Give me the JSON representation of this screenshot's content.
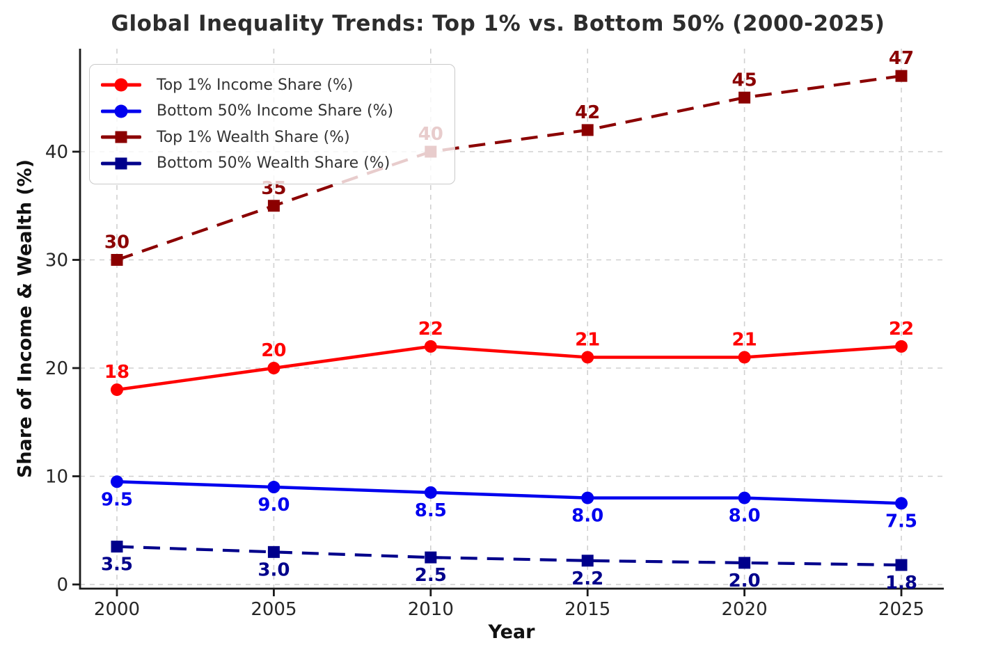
{
  "chart_data": {
    "type": "line",
    "title": "Global Inequality Trends: Top 1% vs. Bottom 50% (2000-2025)",
    "xlabel": "Year",
    "ylabel": "Share of Income & Wealth (%)",
    "categories": [
      2000,
      2005,
      2010,
      2015,
      2020,
      2025
    ],
    "xtick_labels": [
      "2000",
      "2005",
      "2010",
      "2015",
      "2020",
      "2025"
    ],
    "yticks": [
      0,
      10,
      20,
      30,
      40
    ],
    "ytick_labels": [
      "0",
      "10",
      "20",
      "30",
      "40"
    ],
    "ylim": [
      0,
      49.5
    ],
    "grid": true,
    "grid_style": "dashed",
    "legend_position": "upper-left",
    "series": [
      {
        "name": "Top 1% Income Share (%)",
        "values": [
          18,
          20,
          22,
          21,
          21,
          22
        ],
        "point_labels": [
          "18",
          "20",
          "22",
          "21",
          "21",
          "22"
        ],
        "color": "#ff0000",
        "line_style": "solid",
        "marker": "circle",
        "label_side": "above"
      },
      {
        "name": "Bottom 50% Income Share (%)",
        "values": [
          9.5,
          9.0,
          8.5,
          8.0,
          8.0,
          7.5
        ],
        "point_labels": [
          "9.5",
          "9.0",
          "8.5",
          "8.0",
          "8.0",
          "7.5"
        ],
        "color": "#0000ee",
        "line_style": "solid",
        "marker": "circle",
        "label_side": "below"
      },
      {
        "name": "Top 1% Wealth Share (%)",
        "values": [
          30,
          35,
          40,
          42,
          45,
          47
        ],
        "point_labels": [
          "30",
          "35",
          "40",
          "42",
          "45",
          "47"
        ],
        "color": "#8b0000",
        "line_style": "dashed",
        "marker": "square",
        "label_side": "above"
      },
      {
        "name": "Bottom 50% Wealth Share (%)",
        "values": [
          3.5,
          3.0,
          2.5,
          2.2,
          2.0,
          1.8
        ],
        "point_labels": [
          "3.5",
          "3.0",
          "2.5",
          "2.2",
          "2.0",
          "1.8"
        ],
        "color": "#00008b",
        "line_style": "dashed",
        "marker": "square",
        "label_side": "below"
      }
    ],
    "colors": {
      "grid": "#d0d0d0",
      "spine": "#1a1a1a",
      "tick_label": "#262626",
      "title": "#2d2d2d",
      "legend_text": "#333333",
      "legend_border": "#c9c9c9"
    }
  }
}
